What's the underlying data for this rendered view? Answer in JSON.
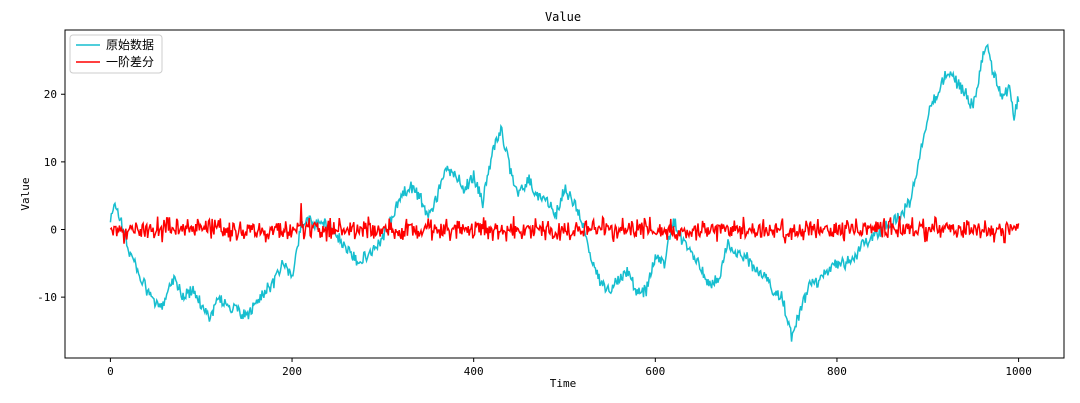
{
  "chart_data": {
    "type": "line",
    "title": "Value",
    "xlabel": "Time",
    "ylabel": "Value",
    "xlim": [
      -50,
      1050
    ],
    "ylim": [
      -19,
      29.5
    ],
    "xticks": [
      0,
      200,
      400,
      600,
      800,
      1000
    ],
    "yticks": [
      -10,
      0,
      10,
      20
    ],
    "grid": false,
    "legend": "top-left",
    "series": [
      {
        "name": "原始数据",
        "color": "#17becf",
        "kind": "random-walk",
        "x": [
          0,
          5,
          10,
          20,
          30,
          40,
          50,
          55,
          60,
          70,
          80,
          90,
          100,
          110,
          120,
          130,
          140,
          150,
          160,
          170,
          180,
          190,
          200,
          210,
          220,
          230,
          240,
          250,
          260,
          270,
          280,
          290,
          300,
          310,
          320,
          330,
          340,
          350,
          360,
          370,
          380,
          390,
          400,
          410,
          420,
          430,
          440,
          450,
          460,
          470,
          480,
          490,
          500,
          510,
          520,
          530,
          540,
          550,
          560,
          570,
          580,
          590,
          600,
          610,
          620,
          630,
          640,
          650,
          660,
          670,
          680,
          690,
          700,
          710,
          720,
          730,
          740,
          750,
          760,
          770,
          780,
          790,
          800,
          810,
          820,
          830,
          840,
          850,
          860,
          870,
          880,
          890,
          900,
          910,
          920,
          930,
          940,
          950,
          960,
          965,
          970,
          980,
          990,
          995,
          1000
        ],
        "values": [
          1.0,
          4.0,
          2.0,
          -3.0,
          -6.0,
          -9.0,
          -11.0,
          -12.0,
          -10.0,
          -7.0,
          -10.0,
          -9.0,
          -11.0,
          -13.0,
          -10.0,
          -11.5,
          -12.0,
          -13.0,
          -11.0,
          -9.0,
          -8.0,
          -5.0,
          -7.0,
          0.5,
          1.5,
          0.5,
          1.0,
          -1.0,
          -3.0,
          -4.5,
          -4.0,
          -3.0,
          -1.0,
          1.5,
          5.0,
          6.5,
          5.0,
          2.0,
          5.0,
          9.0,
          8.0,
          6.0,
          8.0,
          4.0,
          11.0,
          15.0,
          9.0,
          5.0,
          7.5,
          5.0,
          4.5,
          2.0,
          6.0,
          4.0,
          1.0,
          -5.0,
          -8.0,
          -9.0,
          -7.0,
          -6.0,
          -9.5,
          -9.0,
          -4.0,
          -5.0,
          1.5,
          -2.0,
          -3.0,
          -6.0,
          -8.0,
          -7.0,
          -2.0,
          -4.0,
          -4.0,
          -6.0,
          -7.0,
          -9.0,
          -10.0,
          -16.0,
          -12.0,
          -8.0,
          -8.0,
          -6.0,
          -5.0,
          -5.0,
          -4.0,
          -2.0,
          -1.0,
          0.0,
          1.0,
          2.0,
          4.0,
          10.0,
          17.0,
          20.0,
          23.0,
          22.0,
          20.5,
          18.0,
          25.0,
          27.5,
          24.0,
          20.0,
          20.5,
          17.0,
          19.5
        ]
      },
      {
        "name": "一阶差分",
        "color": "#ff0000",
        "kind": "noise",
        "x": [
          0,
          1000
        ],
        "values": [
          0,
          0
        ],
        "amplitude": 1.0,
        "range": [
          -2.8,
          3.9
        ],
        "samples": 1000
      }
    ]
  }
}
